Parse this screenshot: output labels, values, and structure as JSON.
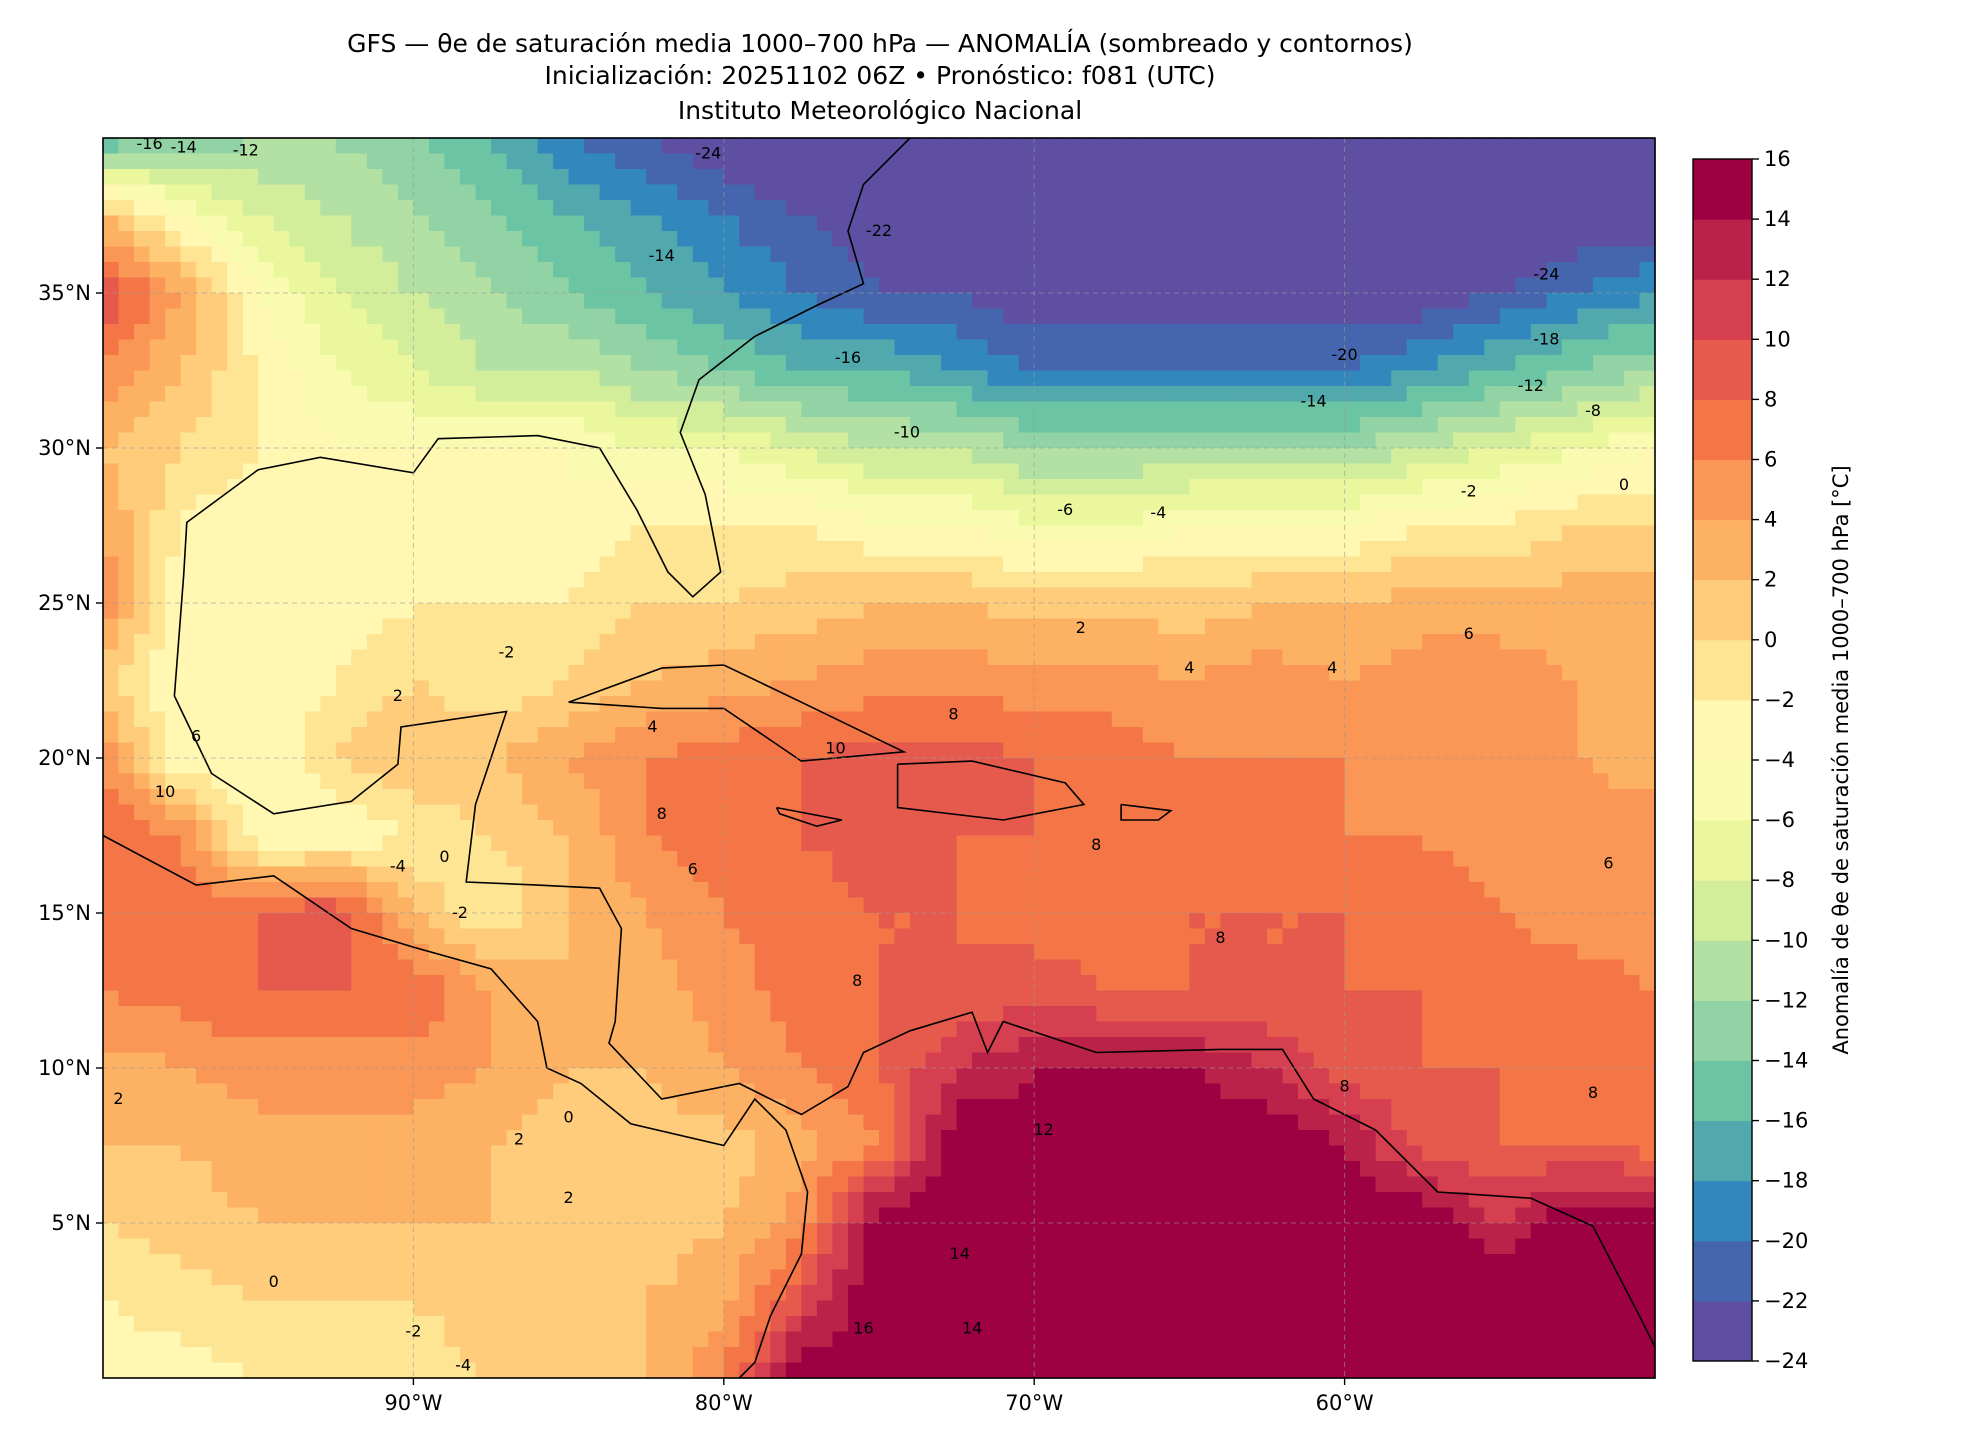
{
  "header": {
    "title": "GFS — θe de saturación media 1000–700 hPa — ANOMALÍA (sombreado y contornos)",
    "subtitle": "Inicialización: 20251102 06Z   •   Pronóstico: f081 (UTC)",
    "institution": "Instituto Meteorológico Nacional"
  },
  "chart_data": {
    "type": "heatmap",
    "title": "GFS — θe de saturación media 1000–700 hPa — ANOMALÍA (sombreado y contornos)",
    "colorbar_label": "Anomalía de θe de saturación media 1000–700 hPa [°C]",
    "lon_range": [
      -100,
      -50
    ],
    "lat_range": [
      0,
      40
    ],
    "grid_step_deg": 2.5,
    "x_ticks": [
      {
        "value": -90,
        "label": "90°W"
      },
      {
        "value": -80,
        "label": "80°W"
      },
      {
        "value": -70,
        "label": "70°W"
      },
      {
        "value": -60,
        "label": "60°W"
      }
    ],
    "y_ticks": [
      {
        "value": 35,
        "label": "35°N"
      },
      {
        "value": 30,
        "label": "30°N"
      },
      {
        "value": 25,
        "label": "25°N"
      },
      {
        "value": 20,
        "label": "20°N"
      },
      {
        "value": 15,
        "label": "15°N"
      },
      {
        "value": 10,
        "label": "10°N"
      },
      {
        "value": 5,
        "label": "5°N"
      }
    ],
    "levels": [
      -24,
      -22,
      -20,
      -18,
      -16,
      -14,
      -12,
      -10,
      -8,
      -6,
      -4,
      -2,
      0,
      2,
      4,
      6,
      8,
      10,
      12,
      14,
      16
    ],
    "level_labels": [
      "−24",
      "−22",
      "−20",
      "−18",
      "−16",
      "−14",
      "−12",
      "−10",
      "−8",
      "−6",
      "−4",
      "−2",
      "0",
      "2",
      "4",
      "6",
      "8",
      "10",
      "12",
      "14",
      "16"
    ],
    "colors": [
      "#5e4fa2",
      "#4566ae",
      "#3288bd",
      "#51a9ae",
      "#6bc4a4",
      "#91d3a4",
      "#b3e0a3",
      "#d3ee9b",
      "#eaf79d",
      "#f8fbb0",
      "#fff7b2",
      "#fee593",
      "#fecc7b",
      "#fdb163",
      "#fa9656",
      "#f47647",
      "#e55a4c",
      "#d53f4f",
      "#bb2249",
      "#9e0142"
    ],
    "grid_lats": [
      40,
      37.5,
      35,
      32.5,
      30,
      27.5,
      25,
      22.5,
      20,
      17.5,
      15,
      12.5,
      10,
      7.5,
      5,
      2.5,
      0
    ],
    "grid_lons": [
      -100,
      -97.5,
      -95,
      -92.5,
      -90,
      -87.5,
      -85,
      -82.5,
      -80,
      -77.5,
      -75,
      -72.5,
      -70,
      -67.5,
      -65,
      -62.5,
      -60,
      -57.5,
      -55,
      -52.5,
      -50
    ],
    "values": [
      [
        -16,
        -14,
        -12,
        -12,
        -14,
        -16,
        -20,
        -22,
        -24,
        -26,
        -26,
        -26,
        -26,
        -26,
        -26,
        -26,
        -26,
        -26,
        -26,
        -26,
        -26
      ],
      [
        2,
        -4,
        -8,
        -10,
        -12,
        -14,
        -16,
        -18,
        -20,
        -22,
        -24,
        -24,
        -26,
        -26,
        -26,
        -26,
        -26,
        -26,
        -26,
        -24,
        -24
      ],
      [
        10,
        4,
        -4,
        -8,
        -10,
        -12,
        -14,
        -16,
        -18,
        -20,
        -22,
        -22,
        -24,
        -24,
        -24,
        -24,
        -24,
        -24,
        -22,
        -20,
        -18
      ],
      [
        6,
        2,
        -2,
        -6,
        -8,
        -10,
        -10,
        -12,
        -14,
        -16,
        -16,
        -18,
        -20,
        -20,
        -20,
        -20,
        -20,
        -18,
        -16,
        -14,
        -12
      ],
      [
        2,
        0,
        -2,
        -4,
        -4,
        -4,
        -4,
        -6,
        -6,
        -8,
        -10,
        -10,
        -12,
        -12,
        -12,
        -12,
        -12,
        -10,
        -8,
        -6,
        -4
      ],
      [
        4,
        -2,
        -4,
        -4,
        -4,
        -4,
        -4,
        -2,
        -2,
        -2,
        -4,
        -4,
        -6,
        -6,
        -4,
        -4,
        -4,
        -2,
        -2,
        0,
        0
      ],
      [
        6,
        -4,
        -4,
        -4,
        -2,
        -2,
        -2,
        0,
        0,
        1,
        2,
        2,
        1,
        1,
        1,
        2,
        2,
        3,
        3,
        3,
        3
      ],
      [
        0,
        -4,
        -4,
        -2,
        0,
        -2,
        0,
        2,
        3,
        4,
        5,
        5,
        5,
        5,
        4,
        5,
        4,
        5,
        5,
        4,
        4
      ],
      [
        6,
        -4,
        -4,
        0,
        2,
        2,
        4,
        6,
        7,
        8,
        9,
        9,
        8,
        7,
        6,
        6,
        6,
        5,
        5,
        4,
        3
      ],
      [
        8,
        6,
        -4,
        -4,
        -2,
        0,
        2,
        6,
        7,
        8,
        9,
        8,
        8,
        7,
        7,
        6,
        6,
        6,
        5,
        5,
        5
      ],
      [
        7,
        8,
        8,
        10,
        2,
        -2,
        2,
        4,
        6,
        7,
        8,
        8,
        7,
        7,
        8,
        8,
        8,
        7,
        6,
        5,
        5
      ],
      [
        6,
        7,
        8,
        8,
        8,
        4,
        2,
        3,
        5,
        7,
        8,
        8,
        9,
        8,
        8,
        8,
        8,
        8,
        7,
        7,
        6
      ],
      [
        3,
        4,
        5,
        5,
        5,
        4,
        2,
        2,
        4,
        6,
        8,
        12,
        14,
        14,
        14,
        12,
        9,
        8,
        8,
        7,
        7
      ],
      [
        2,
        2,
        3,
        3,
        3,
        2,
        1,
        1,
        1,
        3,
        6,
        16,
        15,
        16,
        16,
        16,
        14,
        9,
        8,
        8,
        7
      ],
      [
        0,
        1,
        2,
        2,
        2,
        2,
        1,
        1,
        2,
        5,
        16,
        16,
        16,
        16,
        16,
        16,
        16,
        16,
        12,
        16,
        16
      ],
      [
        -2,
        -1,
        0,
        0,
        0,
        1,
        1,
        2,
        3,
        10,
        16,
        16,
        16,
        16,
        16,
        16,
        16,
        16,
        16,
        16,
        16
      ],
      [
        -3,
        -3,
        -2,
        -2,
        -1,
        0,
        1,
        2,
        6,
        16,
        16,
        16,
        16,
        16,
        16,
        16,
        16,
        16,
        16,
        16,
        16
      ]
    ],
    "contour_labels": [
      {
        "lon": -98.5,
        "lat": 39.8,
        "text": "-16"
      },
      {
        "lon": -97.4,
        "lat": 39.7,
        "text": "-14"
      },
      {
        "lon": -95.4,
        "lat": 39.6,
        "text": "-12"
      },
      {
        "lon": -80.5,
        "lat": 39.5,
        "text": "-24"
      },
      {
        "lon": -75,
        "lat": 37,
        "text": "-22"
      },
      {
        "lon": -82,
        "lat": 36.2,
        "text": "-14"
      },
      {
        "lon": -53.5,
        "lat": 35.6,
        "text": "-24"
      },
      {
        "lon": -60,
        "lat": 33,
        "text": "-20"
      },
      {
        "lon": -53.5,
        "lat": 33.5,
        "text": "-18"
      },
      {
        "lon": -76,
        "lat": 32.9,
        "text": "-16"
      },
      {
        "lon": -54,
        "lat": 32,
        "text": "-12"
      },
      {
        "lon": -61,
        "lat": 31.5,
        "text": "-14"
      },
      {
        "lon": -52,
        "lat": 31.2,
        "text": "-8"
      },
      {
        "lon": -74.1,
        "lat": 30.5,
        "text": "-10"
      },
      {
        "lon": -69,
        "lat": 28,
        "text": "-6"
      },
      {
        "lon": -66,
        "lat": 27.9,
        "text": "-4"
      },
      {
        "lon": -56,
        "lat": 28.6,
        "text": "-2"
      },
      {
        "lon": -51,
        "lat": 28.8,
        "text": "0"
      },
      {
        "lon": -68.5,
        "lat": 24.2,
        "text": "2"
      },
      {
        "lon": -65,
        "lat": 22.9,
        "text": "4"
      },
      {
        "lon": -60.4,
        "lat": 22.9,
        "text": "4"
      },
      {
        "lon": -56,
        "lat": 24,
        "text": "6"
      },
      {
        "lon": -87,
        "lat": 23.4,
        "text": "-2"
      },
      {
        "lon": -90.5,
        "lat": 22,
        "text": "2"
      },
      {
        "lon": -82.3,
        "lat": 21,
        "text": "4"
      },
      {
        "lon": -72.6,
        "lat": 21.4,
        "text": "8"
      },
      {
        "lon": -76.4,
        "lat": 20.3,
        "text": "10"
      },
      {
        "lon": -97,
        "lat": 20.7,
        "text": "6"
      },
      {
        "lon": -98,
        "lat": 18.9,
        "text": "10"
      },
      {
        "lon": -82,
        "lat": 18.2,
        "text": "8"
      },
      {
        "lon": -90.5,
        "lat": 16.5,
        "text": "-4"
      },
      {
        "lon": -89,
        "lat": 16.8,
        "text": "0"
      },
      {
        "lon": -88.5,
        "lat": 15,
        "text": "-2"
      },
      {
        "lon": -81,
        "lat": 16.4,
        "text": "6"
      },
      {
        "lon": -68,
        "lat": 17.2,
        "text": "8"
      },
      {
        "lon": -64,
        "lat": 14.2,
        "text": "8"
      },
      {
        "lon": -51.5,
        "lat": 16.6,
        "text": "6"
      },
      {
        "lon": -75.7,
        "lat": 12.8,
        "text": "8"
      },
      {
        "lon": -99.5,
        "lat": 9,
        "text": "2"
      },
      {
        "lon": -85,
        "lat": 8.4,
        "text": "0"
      },
      {
        "lon": -86.6,
        "lat": 7.7,
        "text": "2"
      },
      {
        "lon": -85,
        "lat": 5.8,
        "text": "2"
      },
      {
        "lon": -94.5,
        "lat": 3.1,
        "text": "0"
      },
      {
        "lon": -90,
        "lat": 1.5,
        "text": "-2"
      },
      {
        "lon": -88.4,
        "lat": 0.4,
        "text": "-4"
      },
      {
        "lon": -69.7,
        "lat": 8,
        "text": "12"
      },
      {
        "lon": -72.4,
        "lat": 4,
        "text": "14"
      },
      {
        "lon": -75.5,
        "lat": 1.6,
        "text": "16"
      },
      {
        "lon": -72,
        "lat": 1.6,
        "text": "14"
      },
      {
        "lon": -52,
        "lat": 9.2,
        "text": "8"
      },
      {
        "lon": -60,
        "lat": 9.4,
        "text": "8"
      }
    ],
    "grid": true
  }
}
